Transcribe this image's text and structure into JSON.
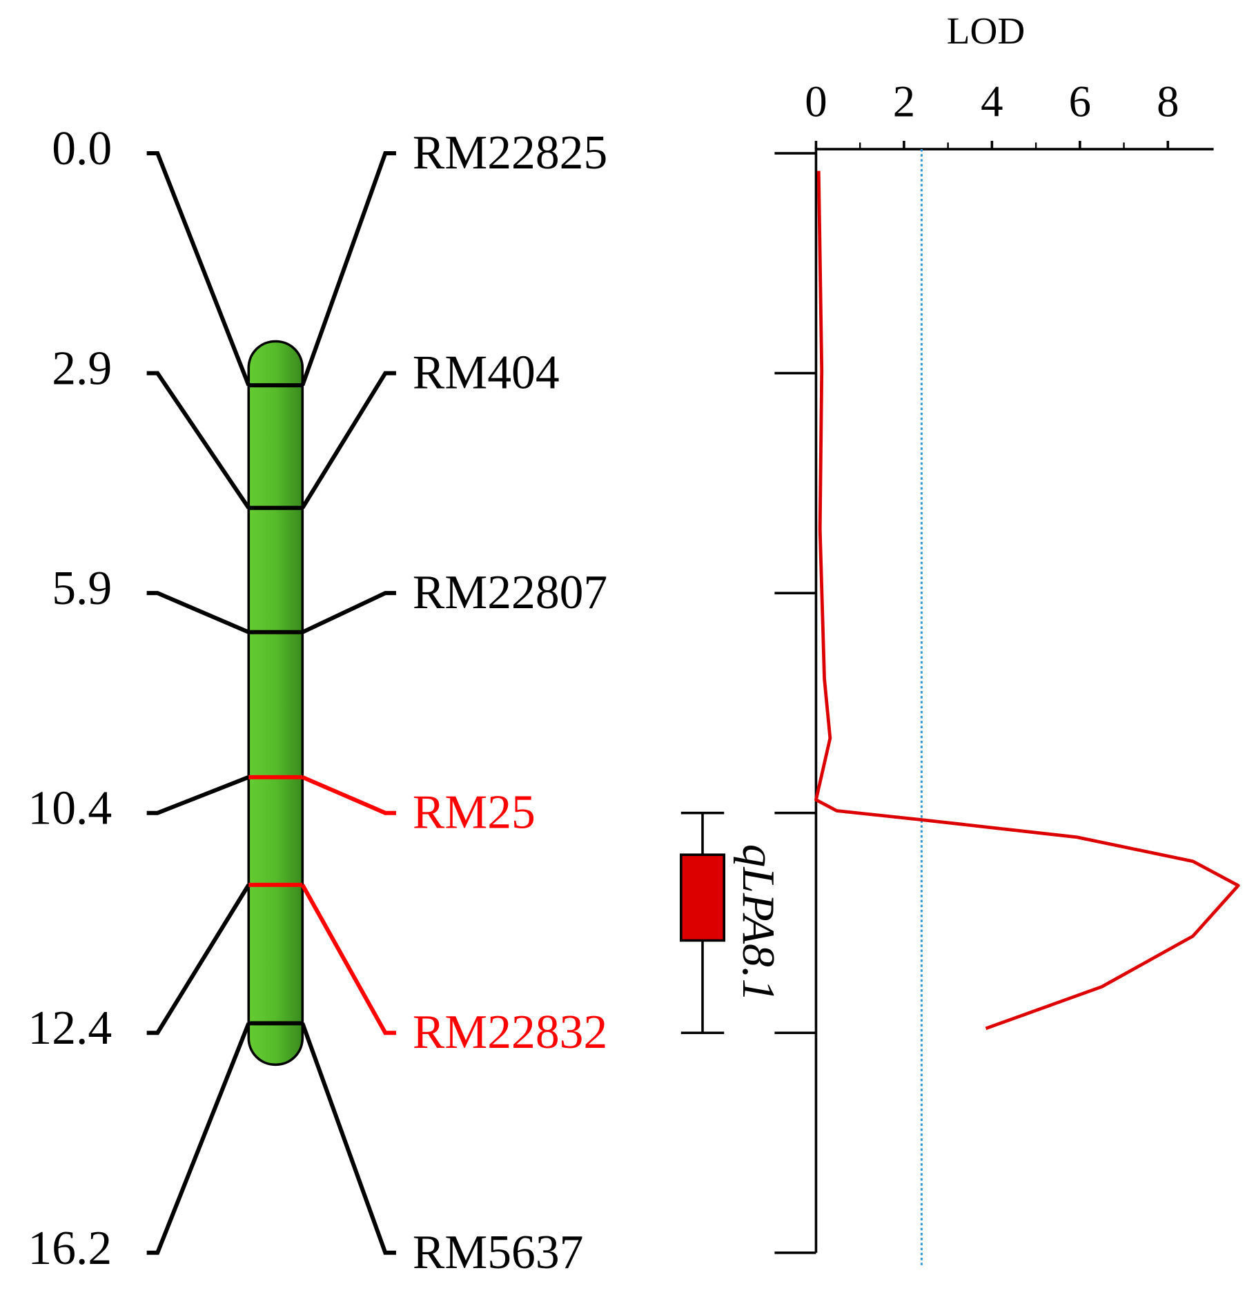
{
  "chart_data": {
    "type": "line",
    "markers": [
      {
        "position": "0.0",
        "name": "RM22825",
        "color": "#000000"
      },
      {
        "position": "2.9",
        "name": "RM404",
        "color": "#000000"
      },
      {
        "position": "5.9",
        "name": "RM22807",
        "color": "#000000"
      },
      {
        "position": "10.4",
        "name": "RM25",
        "color": "#ff0000"
      },
      {
        "position": "12.4",
        "name": "RM22832",
        "color": "#ff0000"
      },
      {
        "position": "16.2",
        "name": "RM5637",
        "color": "#000000"
      }
    ],
    "x_label": "LOD",
    "xlim": [
      0,
      9.04
    ],
    "xticks": [
      0,
      2,
      4,
      6,
      8
    ],
    "xminorticks": [
      1,
      3,
      5,
      7
    ],
    "ylim": [
      0,
      5
    ],
    "threshold": 2.4,
    "threshold_color": "#3399dd",
    "series": [
      {
        "color": "#dd0000",
        "lod": [
          0.06,
          0.13,
          0.09,
          0.19,
          0.32,
          0,
          0.47,
          2.35,
          5.93,
          8.57,
          9.6,
          8.57,
          6.5,
          3.86
        ],
        "position": [
          0.08,
          0.99,
          1.71,
          2.39,
          2.66,
          2.94,
          2.99,
          3.03,
          3.11,
          3.22,
          3.33,
          3.56,
          3.79,
          3.98
        ]
      }
    ],
    "qtl": {
      "name": "qLPA8.1",
      "interval": [
        3,
        4
      ],
      "box": [
        3.19,
        3.58
      ],
      "color": "#dd0000"
    }
  }
}
